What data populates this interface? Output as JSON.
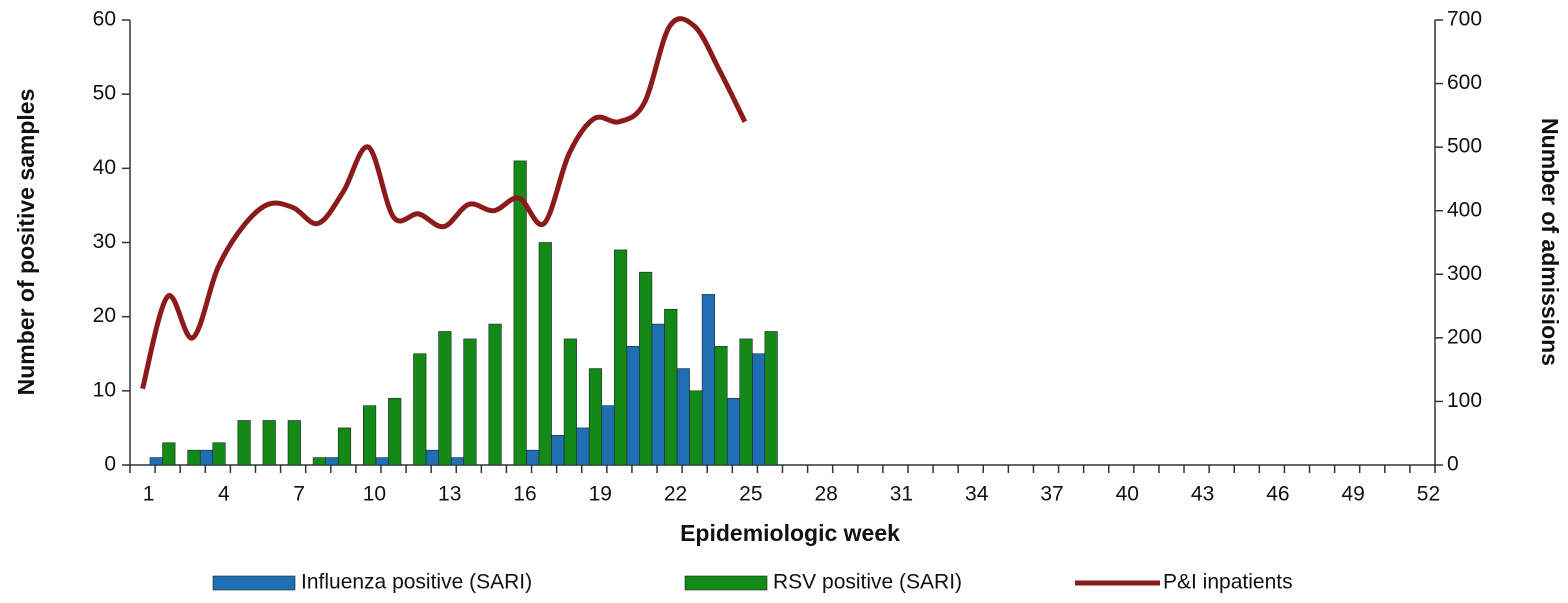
{
  "chart_data": {
    "type": "bar",
    "x_label": "Epidemiologic  week",
    "y_label": "Number of positive samples",
    "y2_label": "Number of admissions",
    "categories": [
      1,
      null,
      null,
      4,
      null,
      null,
      7,
      null,
      null,
      10,
      null,
      null,
      13,
      null,
      null,
      16,
      null,
      null,
      19,
      null,
      null,
      22,
      null,
      null,
      25,
      null,
      null,
      28,
      null,
      null,
      31,
      null,
      null,
      34,
      null,
      null,
      37,
      null,
      null,
      40,
      null,
      null,
      43,
      null,
      null,
      46,
      null,
      null,
      49,
      null,
      null,
      52
    ],
    "series": [
      {
        "name": "Influenza positive (SARI)",
        "type": "bar",
        "color": "#1f6fb4",
        "values": [
          1,
          0,
          2,
          0,
          0,
          0,
          0,
          1,
          0,
          1,
          0,
          2,
          1,
          0,
          0,
          2,
          4,
          5,
          8,
          16,
          19,
          13,
          23,
          9,
          15,
          null,
          null,
          null,
          null,
          null,
          null,
          null,
          null,
          null,
          null,
          null,
          null,
          null,
          null,
          null,
          null,
          null,
          null,
          null,
          null,
          null,
          null,
          null,
          null,
          null,
          null,
          null
        ]
      },
      {
        "name": "RSV positive (SARI)",
        "type": "bar",
        "color": "#138a17",
        "values": [
          3,
          2,
          3,
          6,
          6,
          6,
          1,
          5,
          8,
          9,
          15,
          18,
          17,
          19,
          41,
          30,
          17,
          13,
          29,
          26,
          21,
          10,
          16,
          17,
          18,
          null,
          null,
          null,
          null,
          null,
          null,
          null,
          null,
          null,
          null,
          null,
          null,
          null,
          null,
          null,
          null,
          null,
          null,
          null,
          null,
          null,
          null,
          null,
          null,
          null,
          null,
          null
        ]
      },
      {
        "name": "P&I inpatients",
        "type": "line",
        "axis": "y2",
        "color": "#8b1a1a",
        "values": [
          120,
          265,
          200,
          310,
          375,
          410,
          405,
          380,
          430,
          500,
          390,
          395,
          375,
          410,
          400,
          420,
          380,
          490,
          545,
          540,
          570,
          690,
          690,
          620,
          540,
          null,
          null,
          null,
          null,
          null,
          null,
          null,
          null,
          null,
          null,
          null,
          null,
          null,
          null,
          null,
          null,
          null,
          null,
          null,
          null,
          null,
          null,
          null,
          null,
          null,
          null,
          null
        ]
      }
    ],
    "ylim": [
      0,
      60
    ],
    "yticks": [
      0,
      10,
      20,
      30,
      40,
      50,
      60
    ],
    "y2lim": [
      0,
      700
    ],
    "y2ticks": [
      0,
      100,
      200,
      300,
      400,
      500,
      600,
      700
    ],
    "grid": false,
    "legend": "bottom"
  }
}
